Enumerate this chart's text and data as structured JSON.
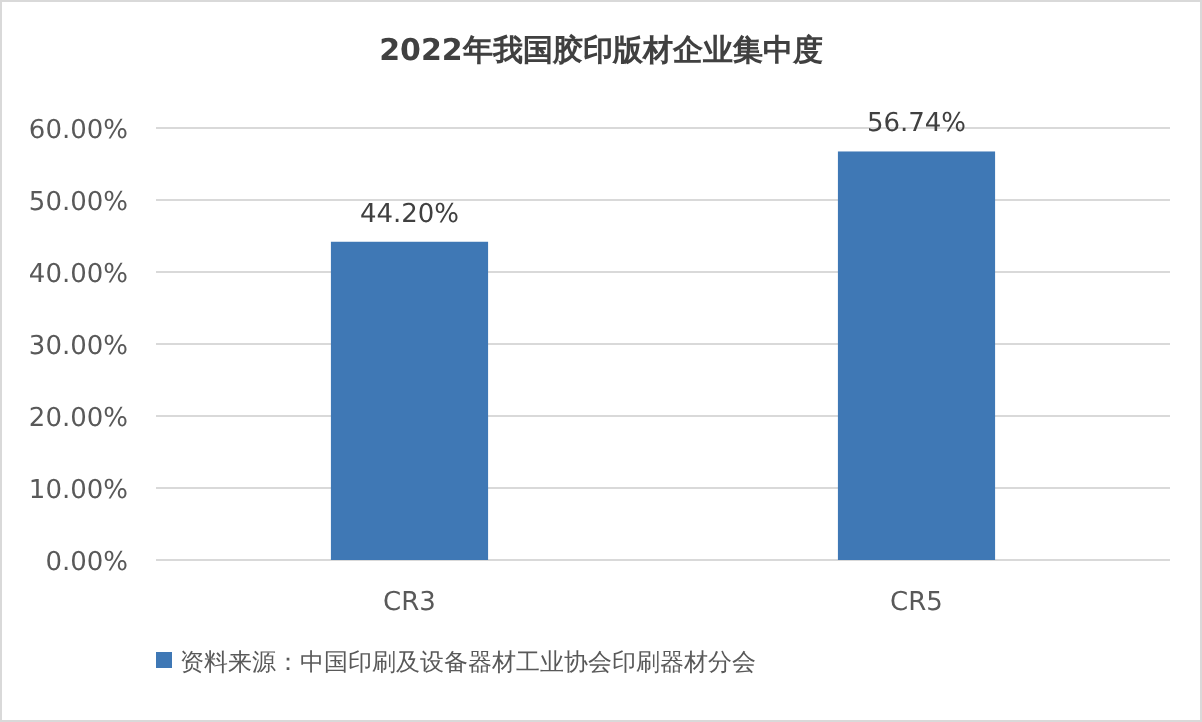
{
  "chart_data": {
    "type": "bar",
    "title": "2022年我国胶印版材企业集中度",
    "categories": [
      "CR3",
      "CR5"
    ],
    "series": [
      {
        "name": "资料来源：中国印刷及设备器材工业协会印刷器材分会",
        "color": "#3f78b5",
        "values": [
          44.2,
          56.74
        ],
        "value_labels": [
          "44.20%",
          "56.74%"
        ]
      }
    ],
    "ylim": [
      0,
      60
    ],
    "yticks": [
      {
        "value": 0,
        "label": "0.00%"
      },
      {
        "value": 10,
        "label": "10.00%"
      },
      {
        "value": 20,
        "label": "20.00%"
      },
      {
        "value": 30,
        "label": "30.00%"
      },
      {
        "value": 40,
        "label": "40.00%"
      },
      {
        "value": 50,
        "label": "50.00%"
      },
      {
        "value": 60,
        "label": "60.00%"
      }
    ],
    "grid": "y",
    "legend": "bottom"
  }
}
